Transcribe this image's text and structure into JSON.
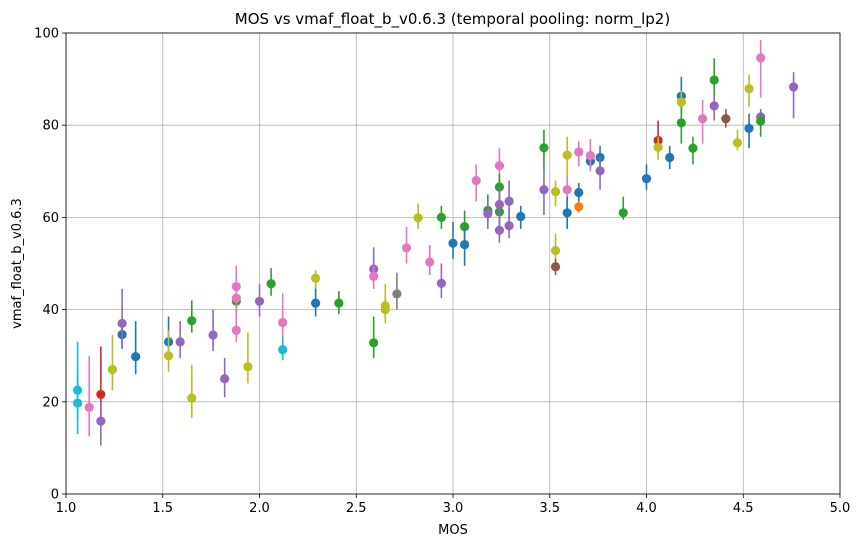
{
  "chart_data": {
    "type": "scatter",
    "title": "MOS vs vmaf_float_b_v0.6.3 (temporal pooling: norm_lp2)",
    "xlabel": "MOS",
    "ylabel": "vmaf_float_b_v0.6.3",
    "xlim": [
      1.0,
      5.0
    ],
    "ylim": [
      0,
      100
    ],
    "xticks": [
      "1.0",
      "1.5",
      "2.0",
      "2.5",
      "3.0",
      "3.5",
      "4.0",
      "4.5",
      "5.0"
    ],
    "yticks": [
      "0",
      "20",
      "40",
      "60",
      "80",
      "100"
    ],
    "grid": true,
    "error_bars": true,
    "points": [
      {
        "x": 1.06,
        "y": 22.5,
        "lo": 16.0,
        "hi": 33.0,
        "color": "#17becf"
      },
      {
        "x": 1.06,
        "y": 19.7,
        "lo": 13.0,
        "hi": 27.0,
        "color": "#17becf"
      },
      {
        "x": 1.12,
        "y": 18.8,
        "lo": 12.5,
        "hi": 30.0,
        "color": "#e377c2"
      },
      {
        "x": 1.18,
        "y": 21.6,
        "lo": 16.0,
        "hi": 32.0,
        "color": "#d62728"
      },
      {
        "x": 1.18,
        "y": 15.8,
        "lo": 10.5,
        "hi": 20.0,
        "color": "#9467bd"
      },
      {
        "x": 1.24,
        "y": 27.0,
        "lo": 22.5,
        "hi": 34.5,
        "color": "#bcbd22"
      },
      {
        "x": 1.29,
        "y": 34.6,
        "lo": 31.5,
        "hi": 37.5,
        "color": "#1f77b4"
      },
      {
        "x": 1.29,
        "y": 37.0,
        "lo": 32.0,
        "hi": 44.5,
        "color": "#9467bd"
      },
      {
        "x": 1.36,
        "y": 29.8,
        "lo": 26.0,
        "hi": 37.5,
        "color": "#1f77b4"
      },
      {
        "x": 1.53,
        "y": 33.0,
        "lo": 29.0,
        "hi": 38.5,
        "color": "#1f77b4"
      },
      {
        "x": 1.53,
        "y": 30.0,
        "lo": 26.5,
        "hi": 35.5,
        "color": "#bcbd22"
      },
      {
        "x": 1.59,
        "y": 33.0,
        "lo": 29.5,
        "hi": 37.5,
        "color": "#9467bd"
      },
      {
        "x": 1.65,
        "y": 37.6,
        "lo": 35.0,
        "hi": 42.0,
        "color": "#2ca02c"
      },
      {
        "x": 1.65,
        "y": 20.8,
        "lo": 16.5,
        "hi": 28.0,
        "color": "#bcbd22"
      },
      {
        "x": 1.76,
        "y": 34.5,
        "lo": 31.0,
        "hi": 40.0,
        "color": "#9467bd"
      },
      {
        "x": 1.82,
        "y": 25.0,
        "lo": 21.0,
        "hi": 29.5,
        "color": "#9467bd"
      },
      {
        "x": 1.88,
        "y": 41.8,
        "lo": 39.0,
        "hi": 45.0,
        "color": "#2ca02c"
      },
      {
        "x": 1.88,
        "y": 42.5,
        "lo": 39.5,
        "hi": 46.0,
        "color": "#e377c2"
      },
      {
        "x": 1.88,
        "y": 45.0,
        "lo": 40.0,
        "hi": 49.5,
        "color": "#e377c2"
      },
      {
        "x": 1.88,
        "y": 35.5,
        "lo": 33.0,
        "hi": 39.5,
        "color": "#e377c2"
      },
      {
        "x": 1.94,
        "y": 27.6,
        "lo": 24.0,
        "hi": 35.0,
        "color": "#bcbd22"
      },
      {
        "x": 2.0,
        "y": 41.8,
        "lo": 38.5,
        "hi": 45.5,
        "color": "#9467bd"
      },
      {
        "x": 2.06,
        "y": 45.6,
        "lo": 43.0,
        "hi": 49.0,
        "color": "#2ca02c"
      },
      {
        "x": 2.12,
        "y": 37.2,
        "lo": 31.0,
        "hi": 43.5,
        "color": "#e377c2"
      },
      {
        "x": 2.12,
        "y": 31.3,
        "lo": 29.0,
        "hi": 34.0,
        "color": "#17becf"
      },
      {
        "x": 2.29,
        "y": 41.4,
        "lo": 38.5,
        "hi": 45.0,
        "color": "#1f77b4"
      },
      {
        "x": 2.29,
        "y": 46.8,
        "lo": 44.5,
        "hi": 48.5,
        "color": "#bcbd22"
      },
      {
        "x": 2.41,
        "y": 41.4,
        "lo": 39.0,
        "hi": 44.0,
        "color": "#2ca02c"
      },
      {
        "x": 2.59,
        "y": 48.8,
        "lo": 45.5,
        "hi": 53.5,
        "color": "#9467bd"
      },
      {
        "x": 2.59,
        "y": 47.2,
        "lo": 44.5,
        "hi": 49.5,
        "color": "#e377c2"
      },
      {
        "x": 2.59,
        "y": 32.8,
        "lo": 29.5,
        "hi": 38.5,
        "color": "#2ca02c"
      },
      {
        "x": 2.65,
        "y": 40.8,
        "lo": 38.0,
        "hi": 45.5,
        "color": "#bcbd22"
      },
      {
        "x": 2.65,
        "y": 40.0,
        "lo": 37.0,
        "hi": 43.5,
        "color": "#bcbd22"
      },
      {
        "x": 2.71,
        "y": 43.4,
        "lo": 40.0,
        "hi": 48.0,
        "color": "#7f7f7f"
      },
      {
        "x": 2.76,
        "y": 53.4,
        "lo": 50.0,
        "hi": 58.0,
        "color": "#e377c2"
      },
      {
        "x": 2.82,
        "y": 59.9,
        "lo": 57.5,
        "hi": 63.0,
        "color": "#bcbd22"
      },
      {
        "x": 2.88,
        "y": 50.3,
        "lo": 47.5,
        "hi": 54.0,
        "color": "#e377c2"
      },
      {
        "x": 2.94,
        "y": 60.0,
        "lo": 57.5,
        "hi": 62.5,
        "color": "#2ca02c"
      },
      {
        "x": 2.94,
        "y": 45.7,
        "lo": 42.5,
        "hi": 50.0,
        "color": "#9467bd"
      },
      {
        "x": 3.0,
        "y": 54.4,
        "lo": 51.0,
        "hi": 59.0,
        "color": "#1f77b4"
      },
      {
        "x": 3.06,
        "y": 58.0,
        "lo": 54.5,
        "hi": 61.5,
        "color": "#2ca02c"
      },
      {
        "x": 3.06,
        "y": 54.1,
        "lo": 49.5,
        "hi": 57.5,
        "color": "#1f77b4"
      },
      {
        "x": 3.12,
        "y": 68.0,
        "lo": 63.5,
        "hi": 71.5,
        "color": "#e377c2"
      },
      {
        "x": 3.18,
        "y": 61.5,
        "lo": 59.0,
        "hi": 65.0,
        "color": "#2ca02c"
      },
      {
        "x": 3.18,
        "y": 60.8,
        "lo": 57.5,
        "hi": 63.5,
        "color": "#9467bd"
      },
      {
        "x": 3.24,
        "y": 71.2,
        "lo": 67.0,
        "hi": 75.0,
        "color": "#e377c2"
      },
      {
        "x": 3.24,
        "y": 66.6,
        "lo": 63.5,
        "hi": 69.5,
        "color": "#2ca02c"
      },
      {
        "x": 3.24,
        "y": 61.2,
        "lo": 58.0,
        "hi": 65.0,
        "color": "#2ca02c"
      },
      {
        "x": 3.24,
        "y": 62.8,
        "lo": 58.5,
        "hi": 66.5,
        "color": "#9467bd"
      },
      {
        "x": 3.24,
        "y": 57.2,
        "lo": 54.5,
        "hi": 61.0,
        "color": "#9467bd"
      },
      {
        "x": 3.29,
        "y": 63.5,
        "lo": 59.5,
        "hi": 68.0,
        "color": "#9467bd"
      },
      {
        "x": 3.29,
        "y": 58.2,
        "lo": 55.5,
        "hi": 62.0,
        "color": "#9467bd"
      },
      {
        "x": 3.35,
        "y": 60.2,
        "lo": 57.5,
        "hi": 62.5,
        "color": "#1f77b4"
      },
      {
        "x": 3.47,
        "y": 75.1,
        "lo": 70.0,
        "hi": 79.0,
        "color": "#2ca02c"
      },
      {
        "x": 3.47,
        "y": 66.0,
        "lo": 60.5,
        "hi": 70.0,
        "color": "#9467bd"
      },
      {
        "x": 3.53,
        "y": 65.6,
        "lo": 62.5,
        "hi": 68.0,
        "color": "#bcbd22"
      },
      {
        "x": 3.53,
        "y": 52.8,
        "lo": 50.0,
        "hi": 56.5,
        "color": "#bcbd22"
      },
      {
        "x": 3.53,
        "y": 49.3,
        "lo": 47.5,
        "hi": 51.0,
        "color": "#8c564b"
      },
      {
        "x": 3.59,
        "y": 73.5,
        "lo": 69.0,
        "hi": 77.5,
        "color": "#bcbd22"
      },
      {
        "x": 3.59,
        "y": 66.0,
        "lo": 63.0,
        "hi": 69.0,
        "color": "#e377c2"
      },
      {
        "x": 3.59,
        "y": 61.0,
        "lo": 57.5,
        "hi": 64.5,
        "color": "#1f77b4"
      },
      {
        "x": 3.65,
        "y": 74.2,
        "lo": 71.0,
        "hi": 76.5,
        "color": "#e377c2"
      },
      {
        "x": 3.65,
        "y": 65.4,
        "lo": 62.5,
        "hi": 67.5,
        "color": "#1f77b4"
      },
      {
        "x": 3.65,
        "y": 62.3,
        "lo": 61.0,
        "hi": 63.5,
        "color": "#ff7f0e"
      },
      {
        "x": 3.71,
        "y": 72.2,
        "lo": 70.5,
        "hi": 75.0,
        "color": "#1f77b4"
      },
      {
        "x": 3.71,
        "y": 73.4,
        "lo": 70.0,
        "hi": 77.0,
        "color": "#e377c2"
      },
      {
        "x": 3.76,
        "y": 73.0,
        "lo": 69.5,
        "hi": 75.5,
        "color": "#1f77b4"
      },
      {
        "x": 3.76,
        "y": 70.1,
        "lo": 66.0,
        "hi": 73.0,
        "color": "#9467bd"
      },
      {
        "x": 3.88,
        "y": 61.0,
        "lo": 59.5,
        "hi": 64.5,
        "color": "#2ca02c"
      },
      {
        "x": 4.0,
        "y": 68.4,
        "lo": 66.0,
        "hi": 71.5,
        "color": "#1f77b4"
      },
      {
        "x": 4.06,
        "y": 76.7,
        "lo": 74.0,
        "hi": 81.0,
        "color": "#d62728"
      },
      {
        "x": 4.06,
        "y": 75.2,
        "lo": 72.5,
        "hi": 77.5,
        "color": "#bcbd22"
      },
      {
        "x": 4.12,
        "y": 73.0,
        "lo": 70.5,
        "hi": 75.5,
        "color": "#1f77b4"
      },
      {
        "x": 4.18,
        "y": 86.3,
        "lo": 82.5,
        "hi": 90.5,
        "color": "#1f77b4"
      },
      {
        "x": 4.18,
        "y": 85.0,
        "lo": 82.0,
        "hi": 87.5,
        "color": "#bcbd22"
      },
      {
        "x": 4.18,
        "y": 80.5,
        "lo": 76.0,
        "hi": 84.0,
        "color": "#2ca02c"
      },
      {
        "x": 4.24,
        "y": 75.0,
        "lo": 71.5,
        "hi": 77.5,
        "color": "#2ca02c"
      },
      {
        "x": 4.29,
        "y": 81.4,
        "lo": 76.0,
        "hi": 85.5,
        "color": "#e377c2"
      },
      {
        "x": 4.35,
        "y": 89.8,
        "lo": 85.0,
        "hi": 94.5,
        "color": "#2ca02c"
      },
      {
        "x": 4.35,
        "y": 84.2,
        "lo": 81.0,
        "hi": 86.5,
        "color": "#9467bd"
      },
      {
        "x": 4.41,
        "y": 81.4,
        "lo": 79.5,
        "hi": 83.5,
        "color": "#8c564b"
      },
      {
        "x": 4.47,
        "y": 76.2,
        "lo": 74.5,
        "hi": 79.0,
        "color": "#bcbd22"
      },
      {
        "x": 4.53,
        "y": 87.9,
        "lo": 84.0,
        "hi": 91.0,
        "color": "#bcbd22"
      },
      {
        "x": 4.53,
        "y": 79.3,
        "lo": 75.0,
        "hi": 82.5,
        "color": "#1f77b4"
      },
      {
        "x": 4.59,
        "y": 94.6,
        "lo": 86.0,
        "hi": 98.5,
        "color": "#e377c2"
      },
      {
        "x": 4.59,
        "y": 81.8,
        "lo": 79.0,
        "hi": 83.5,
        "color": "#9467bd"
      },
      {
        "x": 4.59,
        "y": 80.9,
        "lo": 77.5,
        "hi": 82.5,
        "color": "#2ca02c"
      },
      {
        "x": 4.76,
        "y": 88.3,
        "lo": 81.5,
        "hi": 91.5,
        "color": "#9467bd"
      }
    ]
  }
}
